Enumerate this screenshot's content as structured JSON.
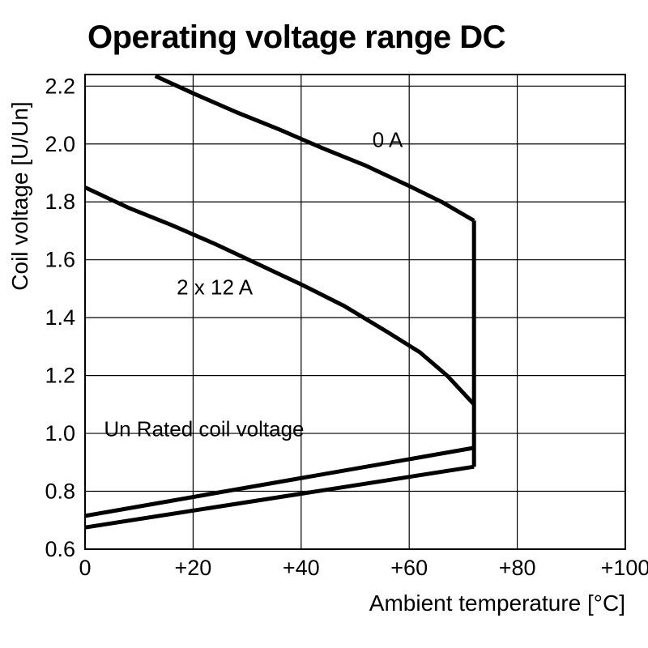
{
  "page": {
    "background": "#ffffff",
    "foreground": "#000000"
  },
  "chart_data": {
    "type": "line",
    "title": "Operating voltage range DC",
    "xlabel": "Ambient temperature [°C]",
    "ylabel": "Coil voltage [U/Un]",
    "xlim": [
      0,
      100
    ],
    "ylim": [
      0.6,
      2.24
    ],
    "xticks": [
      0,
      20,
      40,
      60,
      80,
      100
    ],
    "xtick_labels": [
      "0",
      "+20",
      "+40",
      "+60",
      "+80",
      "+100"
    ],
    "yticks": [
      0.6,
      0.8,
      1.0,
      1.2,
      1.4,
      1.6,
      1.8,
      2.0,
      2.2
    ],
    "ytick_labels": [
      "0.6",
      "0.8",
      "1.0",
      "1.2",
      "1.4",
      "1.6",
      "1.8",
      "2.0",
      "2.2"
    ],
    "grid": true,
    "legend_position": "none",
    "line_color": "#000000",
    "line_width": 5,
    "series": [
      {
        "name": "max-voltage-0A",
        "label": "0 A",
        "points": [
          [
            13,
            2.235
          ],
          [
            20,
            2.175
          ],
          [
            28,
            2.11
          ],
          [
            36,
            2.05
          ],
          [
            44,
            1.985
          ],
          [
            52,
            1.925
          ],
          [
            60,
            1.855
          ],
          [
            66,
            1.8
          ],
          [
            72,
            1.735
          ]
        ]
      },
      {
        "name": "max-voltage-2x12A",
        "label": "2 x 12 A",
        "points": [
          [
            0,
            1.85
          ],
          [
            8,
            1.78
          ],
          [
            16,
            1.72
          ],
          [
            24,
            1.655
          ],
          [
            32,
            1.585
          ],
          [
            40,
            1.515
          ],
          [
            48,
            1.44
          ],
          [
            56,
            1.35
          ],
          [
            62,
            1.28
          ],
          [
            67,
            1.2
          ],
          [
            72,
            1.1
          ]
        ]
      },
      {
        "name": "max-temperature-boundary",
        "label": "",
        "points": [
          [
            72,
            1.735
          ],
          [
            72,
            0.885
          ]
        ]
      },
      {
        "name": "min-voltage-upper",
        "label": "",
        "points": [
          [
            0,
            0.715
          ],
          [
            72,
            0.95
          ]
        ]
      },
      {
        "name": "min-voltage-lower",
        "label": "",
        "points": [
          [
            0,
            0.675
          ],
          [
            72,
            0.885
          ]
        ]
      }
    ],
    "annotations": [
      {
        "text": "0 A",
        "x": 56,
        "y": 1.99,
        "anchor": "middle"
      },
      {
        "text": "2 x 12 A",
        "x": 24,
        "y": 1.48,
        "anchor": "middle"
      },
      {
        "text": "Un Rated coil voltage",
        "x": 3.5,
        "y": 0.99,
        "anchor": "start"
      }
    ]
  }
}
